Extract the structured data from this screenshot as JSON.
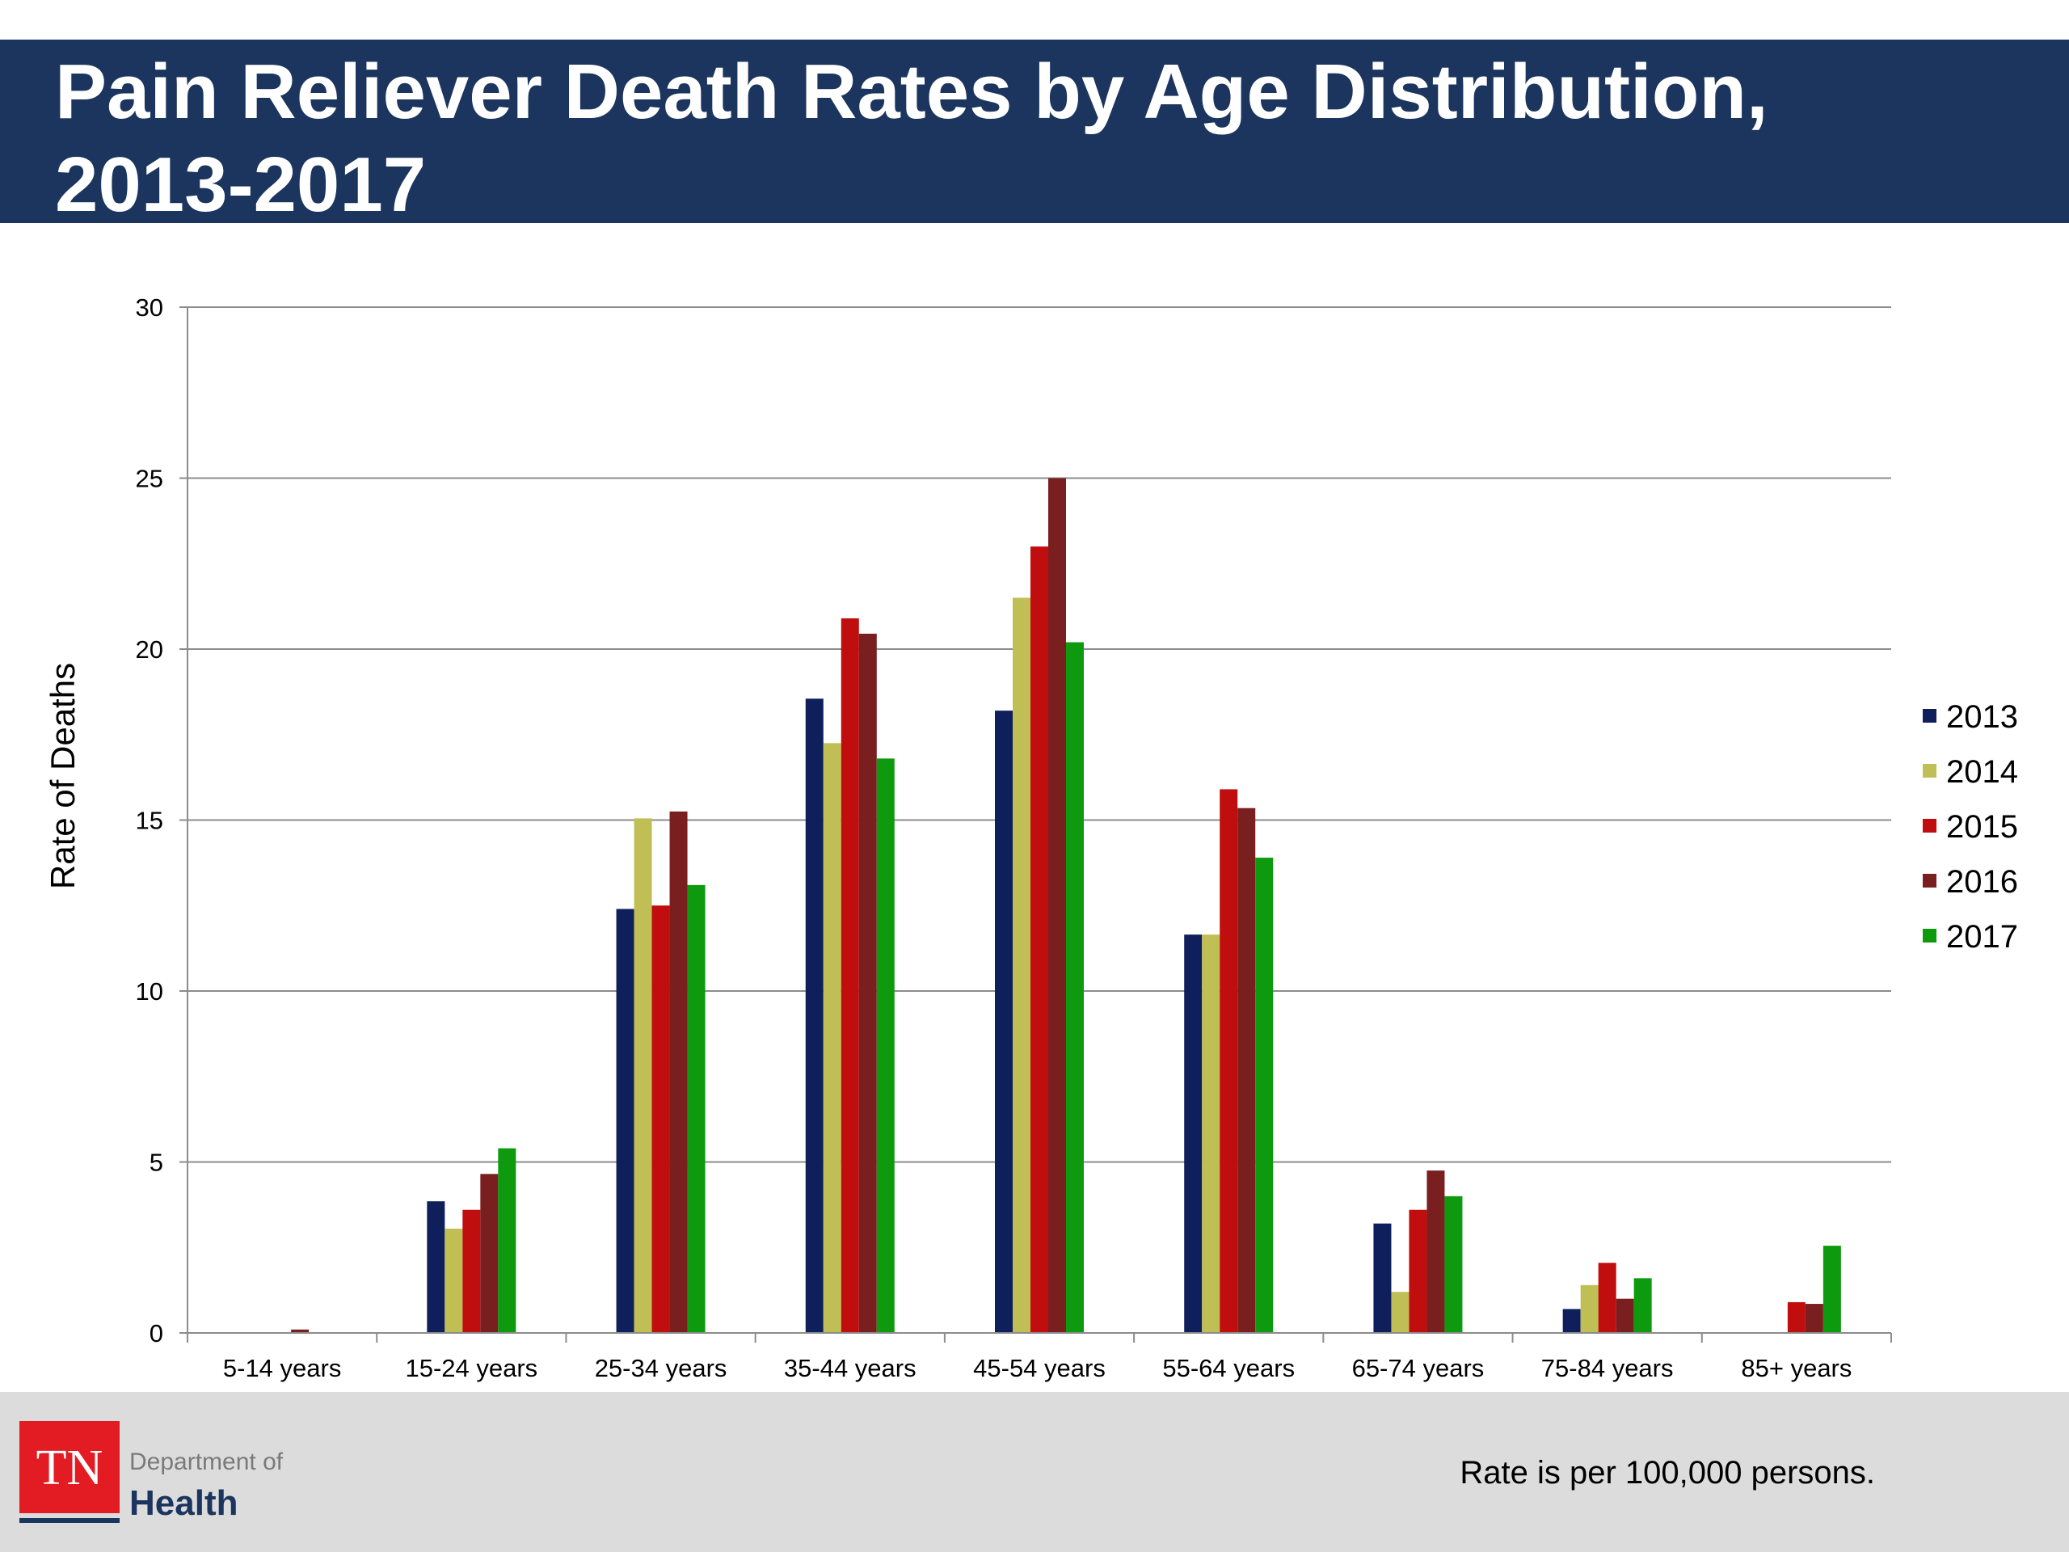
{
  "slide": {
    "title_line1": "Pain Reliever Death Rates by Age Distribution,",
    "title_line2": "2013-2017",
    "footnote": "Rate is per 100,000 persons.",
    "logo": {
      "mark": "TN",
      "line1": "Department of",
      "line2": "Health"
    }
  },
  "colors": {
    "title_bar": "#1c355e",
    "footer_bar": "#dcdcdc",
    "logo_red": "#e31b23",
    "logo_navy": "#1c355e"
  },
  "chart_data": {
    "type": "bar",
    "title": "",
    "xlabel": "",
    "ylabel": "Rate of Deaths",
    "ylim": [
      0,
      30
    ],
    "yticks": [
      0,
      5,
      10,
      15,
      20,
      25,
      30
    ],
    "grid": true,
    "legend_position": "right",
    "categories": [
      "5-14 years",
      "15-24 years",
      "25-34 years",
      "35-44 years",
      "45-54 years",
      "55-64 years",
      "65-74 years",
      "75-84 years",
      "85+ years"
    ],
    "series": [
      {
        "name": "2013",
        "color": "#0f1f5c",
        "values": [
          0,
          3.85,
          12.4,
          18.55,
          18.2,
          11.65,
          3.2,
          0.7,
          0
        ]
      },
      {
        "name": "2014",
        "color": "#bfbf55",
        "values": [
          0,
          3.05,
          15.05,
          17.25,
          21.5,
          11.65,
          1.2,
          1.4,
          0
        ]
      },
      {
        "name": "2015",
        "color": "#c00d0d",
        "values": [
          0,
          3.6,
          12.5,
          20.9,
          23.0,
          15.9,
          3.6,
          2.05,
          0.9
        ]
      },
      {
        "name": "2016",
        "color": "#7a1f20",
        "values": [
          0.1,
          4.65,
          15.25,
          20.45,
          25.0,
          15.35,
          4.75,
          1.0,
          0.85
        ]
      },
      {
        "name": "2017",
        "color": "#0e9a0e",
        "values": [
          0,
          5.4,
          13.1,
          16.8,
          20.2,
          13.9,
          4.0,
          1.6,
          2.55
        ]
      }
    ]
  }
}
